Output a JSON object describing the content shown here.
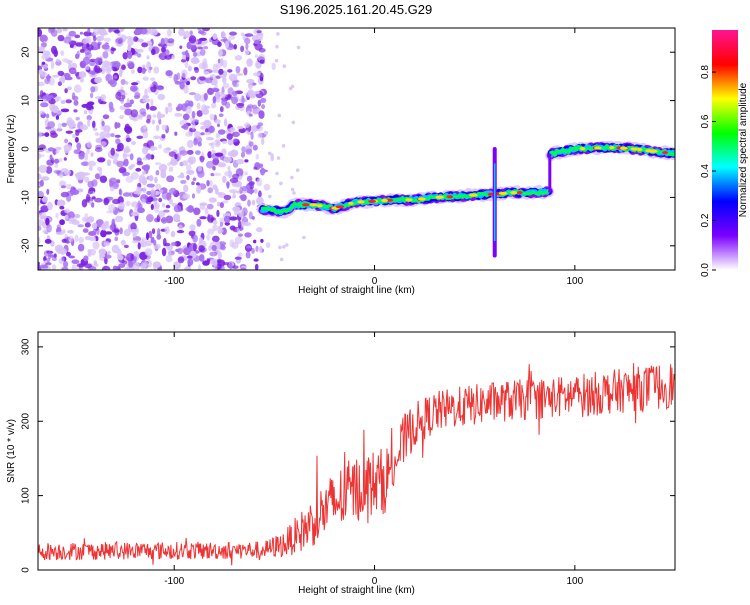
{
  "figure": {
    "title": "S196.2025.161.20.45.G29"
  },
  "chart_data": [
    {
      "type": "heatmap",
      "title": "S196.2025.161.20.45.G29",
      "xlabel": "Height of straight line (km)",
      "ylabel": "Frequency (Hz)",
      "xlim": [
        -168,
        150
      ],
      "ylim": [
        -25,
        25
      ],
      "xticks": [
        -100,
        0,
        100
      ],
      "yticks": [
        -20,
        -10,
        0,
        10,
        20
      ],
      "colorbar": {
        "label": "Normalized spectral amplitude",
        "range": [
          0,
          0.97
        ],
        "ticks": [
          0.0,
          0.2,
          0.4,
          0.6,
          0.8
        ],
        "colormap": [
          "#ffffff",
          "#7b00ff",
          "#0000ff",
          "#00ffff",
          "#00ff00",
          "#ffff00",
          "#ff0000",
          "#ff1493"
        ]
      },
      "noise_region": {
        "x_range": [
          -168,
          -55
        ],
        "freq_range": [
          -25,
          25
        ],
        "typical_amplitude": 0.05
      },
      "signal_ridge": [
        {
          "x": -55,
          "freq": -12.5
        },
        {
          "x": -45,
          "freq": -13
        },
        {
          "x": -40,
          "freq": -11.5
        },
        {
          "x": -30,
          "freq": -11.5
        },
        {
          "x": -20,
          "freq": -12.3
        },
        {
          "x": -10,
          "freq": -11
        },
        {
          "x": 0,
          "freq": -10.8
        },
        {
          "x": 10,
          "freq": -10.5
        },
        {
          "x": 20,
          "freq": -10.5
        },
        {
          "x": 30,
          "freq": -10
        },
        {
          "x": 40,
          "freq": -9.8
        },
        {
          "x": 50,
          "freq": -9.5
        },
        {
          "x": 60,
          "freq": -9.3
        },
        {
          "x": 70,
          "freq": -9
        },
        {
          "x": 80,
          "freq": -9
        },
        {
          "x": 87,
          "freq": -8.8
        },
        {
          "x": 88,
          "freq": -1
        },
        {
          "x": 100,
          "freq": 0
        },
        {
          "x": 110,
          "freq": 0.2
        },
        {
          "x": 120,
          "freq": 0.3
        },
        {
          "x": 130,
          "freq": 0
        },
        {
          "x": 140,
          "freq": -0.5
        },
        {
          "x": 150,
          "freq": -1
        }
      ],
      "vertical_streak": {
        "x": 60,
        "freq_range": [
          -22,
          0
        ]
      }
    },
    {
      "type": "line",
      "xlabel": "Height of straight line (km)",
      "ylabel": "SNR (10 * v/v)",
      "xlim": [
        -168,
        150
      ],
      "ylim": [
        0,
        320
      ],
      "xticks": [
        -100,
        0,
        100
      ],
      "yticks": [
        0,
        100,
        200,
        300
      ],
      "series": [
        {
          "color": "#ee3333",
          "trend_x": [
            -168,
            -120,
            -80,
            -55,
            -45,
            -35,
            -25,
            -15,
            -5,
            5,
            10,
            15,
            20,
            30,
            40,
            50,
            60,
            70,
            80,
            90,
            100,
            110,
            120,
            130,
            140,
            150
          ],
          "trend_y": [
            25,
            26,
            26,
            27,
            35,
            55,
            80,
            100,
            115,
            120,
            145,
            175,
            195,
            212,
            218,
            222,
            226,
            228,
            230,
            232,
            234,
            237,
            240,
            243,
            246,
            250
          ],
          "noise_amplitude": [
            12,
            12,
            12,
            12,
            18,
            30,
            40,
            45,
            45,
            45,
            40,
            35,
            30,
            28,
            28,
            28,
            28,
            28,
            28,
            28,
            30,
            30,
            30,
            30,
            32,
            32
          ]
        }
      ]
    }
  ]
}
